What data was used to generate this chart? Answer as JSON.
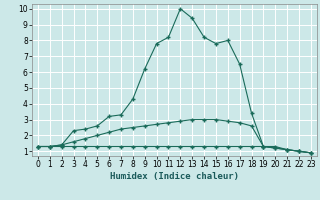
{
  "xlabel": "Humidex (Indice chaleur)",
  "bg_color": "#cce8e8",
  "grid_color": "#ffffff",
  "line_color": "#1a6b5a",
  "xlim": [
    -0.5,
    23.5
  ],
  "ylim": [
    0.7,
    10.3
  ],
  "x_ticks": [
    0,
    1,
    2,
    3,
    4,
    5,
    6,
    7,
    8,
    9,
    10,
    11,
    12,
    13,
    14,
    15,
    16,
    17,
    18,
    19,
    20,
    21,
    22,
    23
  ],
  "y_ticks": [
    1,
    2,
    3,
    4,
    5,
    6,
    7,
    8,
    9,
    10
  ],
  "line1_x": [
    0,
    1,
    2,
    3,
    4,
    5,
    6,
    7,
    8,
    9,
    10,
    11,
    12,
    13,
    14,
    15,
    16,
    17,
    18,
    19,
    20,
    21,
    22,
    23
  ],
  "line1_y": [
    1.3,
    1.3,
    1.3,
    1.3,
    1.3,
    1.3,
    1.3,
    1.3,
    1.3,
    1.3,
    1.3,
    1.3,
    1.3,
    1.3,
    1.3,
    1.3,
    1.3,
    1.3,
    1.3,
    1.3,
    1.3,
    1.1,
    1.0,
    0.9
  ],
  "line2_x": [
    0,
    1,
    2,
    3,
    4,
    5,
    6,
    7,
    8,
    9,
    10,
    11,
    12,
    13,
    14,
    15,
    16,
    17,
    18,
    19,
    20,
    21,
    22,
    23
  ],
  "line2_y": [
    1.3,
    1.3,
    1.4,
    1.6,
    1.8,
    2.0,
    2.2,
    2.4,
    2.5,
    2.6,
    2.7,
    2.8,
    2.9,
    3.0,
    3.0,
    3.0,
    2.9,
    2.8,
    2.6,
    1.3,
    1.2,
    1.1,
    1.0,
    0.9
  ],
  "line3_x": [
    0,
    1,
    2,
    3,
    4,
    5,
    6,
    7,
    8,
    9,
    10,
    11,
    12,
    13,
    14,
    15,
    16,
    17,
    18,
    19,
    20,
    21,
    22,
    23
  ],
  "line3_y": [
    1.3,
    1.3,
    1.4,
    2.3,
    2.4,
    2.6,
    3.2,
    3.3,
    4.3,
    6.2,
    7.8,
    8.2,
    10.0,
    9.4,
    8.2,
    7.8,
    8.0,
    6.5,
    3.4,
    1.3,
    1.2,
    1.1,
    1.0,
    0.9
  ]
}
